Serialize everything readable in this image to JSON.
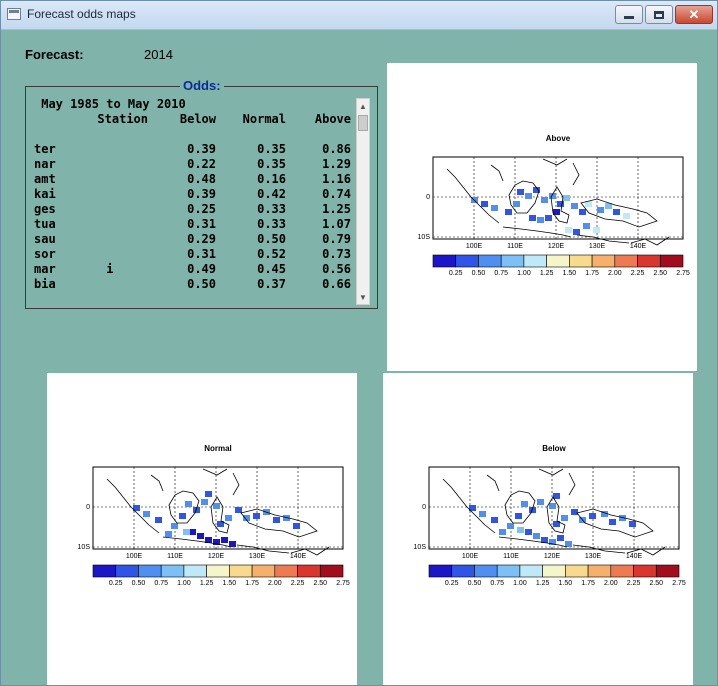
{
  "window": {
    "title": "Forecast odds maps"
  },
  "forecast": {
    "label": "Forecast:",
    "year": "2014"
  },
  "odds": {
    "legend": "Odds:",
    "period": " May 1985 to May 2010",
    "headers": {
      "station": "Station",
      "below": "Below",
      "normal": "Normal",
      "above": "Above"
    },
    "rows": [
      {
        "name": "ter",
        "below": "0.39",
        "normal": "0.35",
        "above": "0.86"
      },
      {
        "name": "nar",
        "below": "0.22",
        "normal": "0.35",
        "above": "1.29"
      },
      {
        "name": "amt",
        "below": "0.48",
        "normal": "0.16",
        "above": "1.16"
      },
      {
        "name": "kai",
        "below": "0.39",
        "normal": "0.42",
        "above": "0.74"
      },
      {
        "name": "ges",
        "below": "0.25",
        "normal": "0.33",
        "above": "1.25"
      },
      {
        "name": "tua",
        "below": "0.31",
        "normal": "0.33",
        "above": "1.07"
      },
      {
        "name": "sau",
        "below": "0.29",
        "normal": "0.50",
        "above": "0.79"
      },
      {
        "name": "sor",
        "below": "0.31",
        "normal": "0.52",
        "above": "0.73"
      },
      {
        "name": "mar       i",
        "below": "0.49",
        "normal": "0.45",
        "above": "0.56"
      },
      {
        "name": "bia",
        "below": "0.50",
        "normal": "0.37",
        "above": "0.66"
      }
    ]
  },
  "maps": [
    {
      "title": "Above"
    },
    {
      "title": "Normal"
    },
    {
      "title": "Below"
    }
  ],
  "map_axes": {
    "x_ticks": [
      "100E",
      "110E",
      "120E",
      "130E",
      "140E"
    ],
    "y_ticks": [
      "0",
      "10S"
    ]
  },
  "colorbar": {
    "labels": [
      "0.25",
      "0.50",
      "0.75",
      "1.00",
      "1.25",
      "1.50",
      "1.75",
      "2.00",
      "2.25",
      "2.50",
      "2.75"
    ],
    "colors": [
      "#1b16c8",
      "#2e54e8",
      "#4f8ff2",
      "#7cc0f5",
      "#bfe9f7",
      "#f4f5c9",
      "#f7da8e",
      "#f6b06b",
      "#ee7a52",
      "#d8362e",
      "#a10d1c"
    ]
  }
}
